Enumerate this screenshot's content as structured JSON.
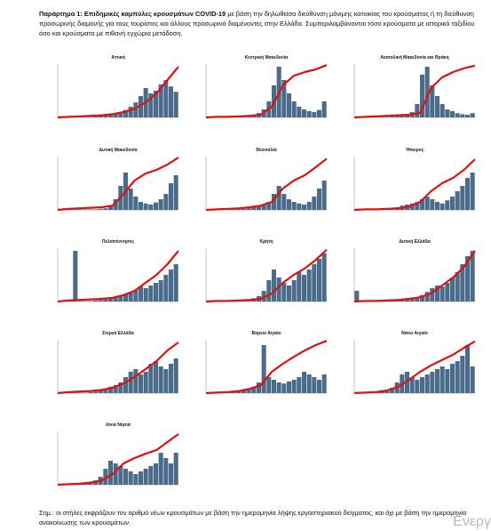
{
  "header": {
    "label": "Παράρτημα 1: Επιδημικές καμπύλες κρουσμάτων COVID-19",
    "text": "με βάση την δηλωθείσα διεύθυνση μόνιμης κατοικίας του κρούσματος ή τη διεύθυνση προσωρινής διαμονής για τους τουρίστες και άλλους προσωρινά διαμένοντες στην Ελλάδα. Συμπεριλαμβάνονται τόσο κρούσματα με ιστορικό ταξιδίου όσο και κρούσματα με πιθανή εγχώρια μετάδοση."
  },
  "footnote": "Σημ.: οι στήλες εκφράζουν τον αριθμό νέων κρουσμάτων με βάση την ημερομηνία λήψης εργαστηριακού δείγματος, και όχι με βάση την ημερομηνία ανακοίνωσης των κρουσμάτων.",
  "watermark": "Ενεργ",
  "chart_data": [
    {
      "type": "bar",
      "title": "Αττική",
      "color": "#4a6b8a",
      "ylim": [
        0,
        100
      ],
      "y2lim": [
        0,
        100
      ],
      "values": [
        1,
        2,
        1,
        1,
        1,
        1,
        1,
        2,
        3,
        4,
        6,
        8,
        10,
        14,
        20,
        28,
        40,
        55,
        45,
        50,
        62,
        70,
        58,
        48
      ],
      "line": {
        "color": "#e01010",
        "axis": "y2",
        "values": [
          0,
          1,
          2,
          3,
          4,
          6,
          10,
          16,
          28,
          45,
          70,
          95
        ]
      }
    },
    {
      "type": "bar",
      "title": "Κεντρική Μακεδονία",
      "color": "#4a6b8a",
      "ylim": [
        0,
        100
      ],
      "y2lim": [
        0,
        100
      ],
      "values": [
        1,
        1,
        0,
        1,
        1,
        1,
        2,
        2,
        3,
        5,
        8,
        15,
        30,
        60,
        95,
        70,
        45,
        30,
        20,
        15,
        12,
        10,
        14,
        30
      ],
      "line": {
        "color": "#e01010",
        "axis": "y2",
        "values": [
          0,
          1,
          1,
          2,
          3,
          5,
          20,
          60,
          78,
          85,
          90,
          98
        ]
      }
    },
    {
      "type": "bar",
      "title": "Ανατολική Μακεδονία και Θράκη",
      "color": "#4a6b8a",
      "ylim": [
        0,
        100
      ],
      "y2lim": [
        0,
        100
      ],
      "values": [
        0,
        1,
        1,
        1,
        1,
        1,
        1,
        2,
        3,
        4,
        6,
        10,
        25,
        80,
        95,
        60,
        40,
        25,
        15,
        12,
        8,
        6,
        5,
        8
      ],
      "line": {
        "color": "#e01010",
        "axis": "y2",
        "values": [
          0,
          1,
          2,
          3,
          4,
          5,
          8,
          55,
          75,
          85,
          92,
          97
        ]
      }
    },
    {
      "type": "bar",
      "title": "Δυτική Μακεδονία",
      "color": "#4a6b8a",
      "ylim": [
        0,
        100
      ],
      "y2lim": [
        0,
        100
      ],
      "values": [
        2,
        3,
        1,
        1,
        1,
        1,
        1,
        1,
        2,
        3,
        8,
        20,
        45,
        70,
        40,
        25,
        15,
        12,
        10,
        14,
        20,
        30,
        50,
        65
      ],
      "line": {
        "color": "#e01010",
        "axis": "y2",
        "values": [
          0,
          2,
          3,
          4,
          5,
          8,
          30,
          55,
          68,
          75,
          85,
          98
        ]
      }
    },
    {
      "type": "bar",
      "title": "Θεσσαλία",
      "color": "#4a6b8a",
      "ylim": [
        0,
        100
      ],
      "y2lim": [
        0,
        100
      ],
      "values": [
        1,
        1,
        0,
        1,
        1,
        1,
        2,
        2,
        3,
        5,
        8,
        10,
        15,
        30,
        45,
        30,
        20,
        15,
        12,
        10,
        15,
        25,
        40,
        55
      ],
      "line": {
        "color": "#e01010",
        "axis": "y2",
        "values": [
          0,
          1,
          2,
          3,
          5,
          8,
          15,
          40,
          55,
          65,
          80,
          96
        ]
      }
    },
    {
      "type": "bar",
      "title": "Ήπειρος",
      "color": "#4a6b8a",
      "ylim": [
        0,
        100
      ],
      "y2lim": [
        0,
        100
      ],
      "values": [
        0,
        1,
        1,
        1,
        1,
        1,
        2,
        3,
        5,
        8,
        10,
        12,
        15,
        20,
        25,
        20,
        15,
        12,
        18,
        25,
        35,
        45,
        60,
        70
      ],
      "line": {
        "color": "#e01010",
        "axis": "y2",
        "values": [
          0,
          1,
          1,
          2,
          3,
          6,
          15,
          35,
          50,
          60,
          75,
          95
        ]
      }
    },
    {
      "type": "bar",
      "title": "Πελοπόννησος",
      "color": "#4a6b8a",
      "ylim": [
        0,
        100
      ],
      "y2lim": [
        0,
        100
      ],
      "values": [
        0,
        1,
        1,
        95,
        1,
        1,
        1,
        2,
        3,
        4,
        5,
        8,
        10,
        14,
        18,
        22,
        28,
        25,
        30,
        35,
        40,
        50,
        60,
        70
      ],
      "line": {
        "color": "#e01010",
        "axis": "y2",
        "values": [
          0,
          2,
          3,
          4,
          5,
          7,
          12,
          20,
          35,
          50,
          70,
          95
        ]
      }
    },
    {
      "type": "bar",
      "title": "Κρήτη",
      "color": "#4a6b8a",
      "ylim": [
        0,
        100
      ],
      "y2lim": [
        0,
        100
      ],
      "values": [
        0,
        0,
        1,
        1,
        1,
        1,
        2,
        3,
        4,
        6,
        10,
        20,
        40,
        60,
        45,
        35,
        30,
        40,
        55,
        50,
        60,
        70,
        80,
        90
      ],
      "line": {
        "color": "#e01010",
        "axis": "y2",
        "values": [
          0,
          1,
          1,
          2,
          3,
          5,
          15,
          35,
          50,
          62,
          78,
          97
        ]
      }
    },
    {
      "type": "bar",
      "title": "Δυτική Ελλάδα",
      "color": "#4a6b8a",
      "ylim": [
        0,
        100
      ],
      "y2lim": [
        0,
        100
      ],
      "values": [
        20,
        2,
        1,
        1,
        1,
        1,
        1,
        2,
        2,
        3,
        4,
        6,
        8,
        12,
        18,
        25,
        30,
        28,
        35,
        45,
        55,
        70,
        85,
        95
      ],
      "line": {
        "color": "#e01010",
        "axis": "y2",
        "values": [
          0,
          1,
          1,
          2,
          3,
          5,
          8,
          15,
          30,
          45,
          65,
          95
        ]
      }
    },
    {
      "type": "bar",
      "title": "Στερεά Ελλάδα",
      "color": "#4a6b8a",
      "ylim": [
        0,
        100
      ],
      "y2lim": [
        0,
        100
      ],
      "values": [
        2,
        3,
        1,
        1,
        1,
        1,
        2,
        3,
        5,
        8,
        12,
        15,
        20,
        30,
        40,
        45,
        35,
        40,
        55,
        60,
        50,
        45,
        55,
        65
      ],
      "line": {
        "color": "#e01010",
        "axis": "y2",
        "values": [
          0,
          2,
          3,
          4,
          6,
          10,
          18,
          30,
          45,
          60,
          80,
          95
        ]
      }
    },
    {
      "type": "bar",
      "title": "Βόρειο Αιγαίο",
      "color": "#4a6b8a",
      "ylim": [
        0,
        100
      ],
      "y2lim": [
        0,
        100
      ],
      "values": [
        1,
        1,
        0,
        1,
        1,
        2,
        3,
        5,
        8,
        12,
        20,
        90,
        30,
        25,
        20,
        18,
        22,
        25,
        30,
        40,
        35,
        30,
        25,
        35
      ],
      "line": {
        "color": "#e01010",
        "axis": "y2",
        "values": [
          0,
          1,
          2,
          4,
          8,
          15,
          40,
          55,
          68,
          80,
          90,
          98
        ]
      }
    },
    {
      "type": "bar",
      "title": "Νότιο Αιγαίο",
      "color": "#4a6b8a",
      "ylim": [
        0,
        100
      ],
      "y2lim": [
        0,
        100
      ],
      "values": [
        0,
        1,
        1,
        1,
        2,
        3,
        6,
        10,
        20,
        35,
        40,
        30,
        25,
        30,
        35,
        40,
        45,
        50,
        45,
        55,
        60,
        70,
        90,
        50
      ],
      "line": {
        "color": "#e01010",
        "axis": "y2",
        "values": [
          0,
          1,
          2,
          5,
          12,
          25,
          40,
          52,
          62,
          72,
          85,
          97
        ]
      }
    },
    {
      "type": "bar",
      "title": "Ιόνια Νησιά",
      "color": "#4a6b8a",
      "ylim": [
        0,
        100
      ],
      "y2lim": [
        0,
        100
      ],
      "values": [
        0,
        1,
        1,
        1,
        2,
        3,
        5,
        8,
        15,
        30,
        45,
        40,
        35,
        30,
        25,
        20,
        25,
        30,
        35,
        40,
        60,
        50,
        40,
        60
      ],
      "line": {
        "color": "#e01010",
        "axis": "y2",
        "values": [
          0,
          1,
          2,
          4,
          8,
          20,
          40,
          50,
          58,
          65,
          80,
          95
        ]
      }
    }
  ]
}
